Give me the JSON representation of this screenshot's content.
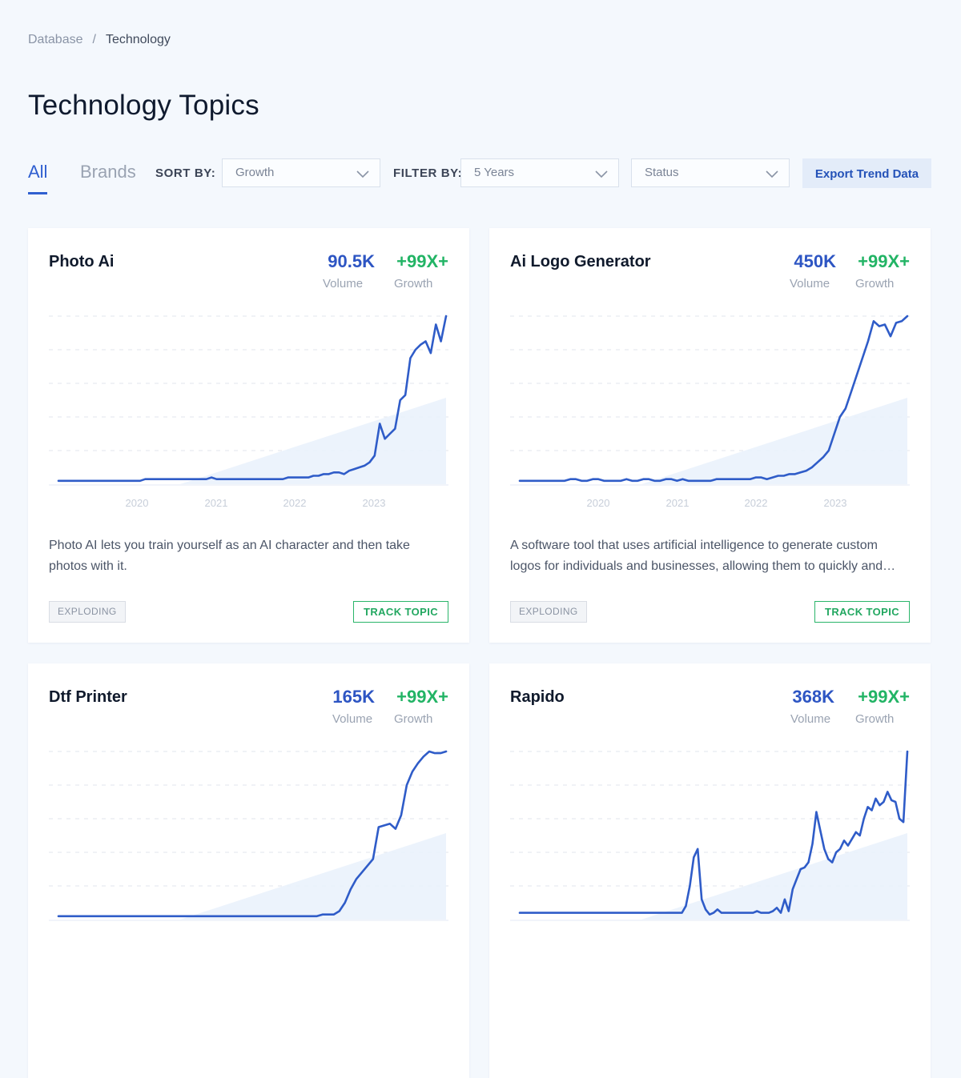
{
  "breadcrumb": {
    "root": "Database",
    "separator": "/",
    "current": "Technology"
  },
  "page_title": "Technology Topics",
  "tabs": {
    "all": "All",
    "brands": "Brands"
  },
  "controls": {
    "sort_label": "SORT BY:",
    "sort_value": "Growth",
    "filter_label": "FILTER BY:",
    "filter_value": "5 Years",
    "status_value": "Status",
    "export_label": "Export Trend Data"
  },
  "colors": {
    "accent": "#2d55c3",
    "growth": "#22b465",
    "line": "#2f5cc8"
  },
  "cards": [
    {
      "title": "Photo Ai",
      "volume": "90.5K",
      "volume_label": "Volume",
      "growth": "+99X+",
      "growth_label": "Growth",
      "description_line1": "Photo AI lets you train yourself as an AI character and then take",
      "description_line2": "photos with it.",
      "badge": "EXPLODING",
      "track_label": "TRACK TOPIC",
      "chart_data": {
        "type": "line",
        "x_ticks": [
          "2020",
          "2021",
          "2022",
          "2023"
        ],
        "values": [
          2,
          2,
          2,
          2,
          2,
          2,
          2,
          2,
          2,
          2,
          2,
          2,
          2,
          2,
          2,
          2,
          2,
          3,
          3,
          3,
          3,
          3,
          3,
          3,
          3,
          3,
          3,
          3,
          3,
          3,
          4,
          3,
          3,
          3,
          3,
          3,
          3,
          3,
          3,
          3,
          3,
          3,
          3,
          3,
          3,
          4,
          4,
          4,
          4,
          4,
          5,
          5,
          6,
          6,
          7,
          7,
          6,
          8,
          9,
          10,
          11,
          13,
          17,
          36,
          27,
          30,
          33,
          50,
          53,
          75,
          80,
          83,
          85,
          78,
          95,
          85,
          100
        ]
      }
    },
    {
      "title": "Ai Logo Generator",
      "volume": "450K",
      "volume_label": "Volume",
      "growth": "+99X+",
      "growth_label": "Growth",
      "description_line1": "A software tool that uses artificial intelligence to generate custom",
      "description_line2": "logos for individuals and businesses, allowing them to quickly and…",
      "badge": "EXPLODING",
      "track_label": "TRACK TOPIC",
      "chart_data": {
        "type": "line",
        "x_ticks": [
          "2020",
          "2021",
          "2022",
          "2023"
        ],
        "values": [
          2,
          2,
          2,
          2,
          2,
          2,
          2,
          2,
          2,
          3,
          3,
          2,
          2,
          3,
          3,
          2,
          2,
          2,
          2,
          3,
          2,
          2,
          3,
          3,
          2,
          2,
          3,
          3,
          2,
          3,
          2,
          2,
          2,
          2,
          2,
          3,
          3,
          3,
          3,
          3,
          3,
          3,
          4,
          4,
          3,
          4,
          5,
          5,
          6,
          6,
          7,
          8,
          10,
          13,
          16,
          20,
          30,
          40,
          45,
          55,
          65,
          75,
          85,
          97,
          94,
          95,
          88,
          96,
          97,
          100
        ]
      }
    },
    {
      "title": "Dtf Printer",
      "volume": "165K",
      "volume_label": "Volume",
      "growth": "+99X+",
      "growth_label": "Growth",
      "description_line1": "",
      "description_line2": "",
      "badge": "",
      "track_label": "",
      "chart_data": {
        "type": "line",
        "x_ticks": [],
        "values": [
          2,
          2,
          2,
          2,
          2,
          2,
          2,
          2,
          2,
          2,
          2,
          2,
          2,
          2,
          2,
          2,
          2,
          2,
          2,
          2,
          2,
          2,
          2,
          2,
          2,
          2,
          2,
          2,
          2,
          2,
          2,
          2,
          2,
          2,
          2,
          2,
          2,
          2,
          2,
          2,
          2,
          2,
          2,
          2,
          2,
          2,
          2,
          3,
          3,
          3,
          5,
          10,
          18,
          24,
          28,
          32,
          36,
          55,
          56,
          57,
          54,
          62,
          80,
          88,
          93,
          97,
          100,
          99,
          99,
          100
        ]
      }
    },
    {
      "title": "Rapido",
      "volume": "368K",
      "volume_label": "Volume",
      "growth": "+99X+",
      "growth_label": "Growth",
      "description_line1": "",
      "description_line2": "",
      "badge": "",
      "track_label": "",
      "chart_data": {
        "type": "line",
        "x_ticks": [],
        "values": [
          4,
          4,
          4,
          4,
          4,
          4,
          4,
          4,
          4,
          4,
          4,
          4,
          4,
          4,
          4,
          4,
          4,
          4,
          4,
          4,
          4,
          4,
          4,
          4,
          4,
          4,
          4,
          4,
          4,
          4,
          4,
          4,
          4,
          4,
          4,
          4,
          4,
          4,
          4,
          4,
          4,
          4,
          8,
          20,
          37,
          42,
          12,
          6,
          3,
          4,
          6,
          4,
          4,
          4,
          4,
          4,
          4,
          4,
          4,
          4,
          5,
          4,
          4,
          4,
          5,
          7,
          4,
          12,
          5,
          18,
          24,
          30,
          31,
          34,
          45,
          64,
          53,
          42,
          36,
          34,
          40,
          42,
          47,
          44,
          48,
          52,
          50,
          60,
          67,
          65,
          72,
          68,
          70,
          76,
          71,
          70,
          60,
          58,
          100
        ]
      }
    }
  ]
}
